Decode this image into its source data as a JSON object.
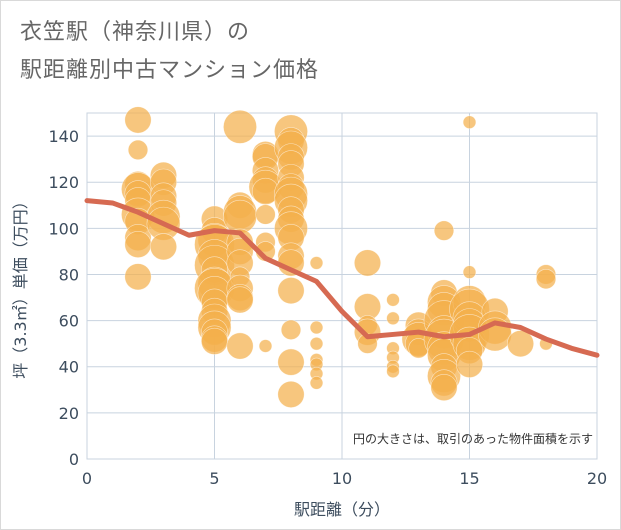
{
  "title_lines": [
    "衣笠駅（神奈川県）の",
    "駅距離別中古マンション価格"
  ],
  "chart_data": {
    "type": "scatter",
    "title": "衣笠駅（神奈川県）の駅距離別中古マンション価格",
    "xlabel": "駅距離（分）",
    "ylabel": "坪（3.3㎡）単価（万円）",
    "xlim": [
      0,
      20
    ],
    "ylim": [
      0,
      150
    ],
    "xticks": [
      0,
      5,
      10,
      15,
      20
    ],
    "yticks": [
      0,
      20,
      40,
      60,
      80,
      100,
      120,
      140
    ],
    "grid": true,
    "note": "円の大きさは、取引のあった物件面積を示す",
    "colors": {
      "bubble": "#f4b04c",
      "trend": "#d66a52",
      "grid": "#c8d3df",
      "text": "#3d4d5e"
    },
    "points": [
      {
        "x": 2,
        "y": 147,
        "s": 3
      },
      {
        "x": 2,
        "y": 134,
        "s": 2
      },
      {
        "x": 2,
        "y": 119,
        "s": 3
      },
      {
        "x": 2,
        "y": 117,
        "s": 4
      },
      {
        "x": 2,
        "y": 115,
        "s": 3
      },
      {
        "x": 2,
        "y": 112,
        "s": 3
      },
      {
        "x": 2,
        "y": 106,
        "s": 4
      },
      {
        "x": 2,
        "y": 103,
        "s": 3
      },
      {
        "x": 2,
        "y": 96,
        "s": 3
      },
      {
        "x": 2,
        "y": 93,
        "s": 3
      },
      {
        "x": 2,
        "y": 79,
        "s": 3
      },
      {
        "x": 3,
        "y": 123,
        "s": 3
      },
      {
        "x": 3,
        "y": 120,
        "s": 3
      },
      {
        "x": 3,
        "y": 114,
        "s": 3
      },
      {
        "x": 3,
        "y": 111,
        "s": 3
      },
      {
        "x": 3,
        "y": 105,
        "s": 4
      },
      {
        "x": 3,
        "y": 102,
        "s": 4
      },
      {
        "x": 3,
        "y": 92,
        "s": 3
      },
      {
        "x": 5,
        "y": 104,
        "s": 3
      },
      {
        "x": 5,
        "y": 99,
        "s": 3
      },
      {
        "x": 5,
        "y": 95,
        "s": 4
      },
      {
        "x": 5,
        "y": 93,
        "s": 5
      },
      {
        "x": 5,
        "y": 88,
        "s": 4
      },
      {
        "x": 5,
        "y": 84,
        "s": 5
      },
      {
        "x": 5,
        "y": 82,
        "s": 3
      },
      {
        "x": 5,
        "y": 76,
        "s": 4
      },
      {
        "x": 5,
        "y": 74,
        "s": 5
      },
      {
        "x": 5,
        "y": 72,
        "s": 4
      },
      {
        "x": 5,
        "y": 68,
        "s": 3
      },
      {
        "x": 5,
        "y": 64,
        "s": 3
      },
      {
        "x": 5,
        "y": 60,
        "s": 4
      },
      {
        "x": 5,
        "y": 57,
        "s": 4
      },
      {
        "x": 5,
        "y": 55,
        "s": 3
      },
      {
        "x": 5,
        "y": 52,
        "s": 3
      },
      {
        "x": 5,
        "y": 51,
        "s": 3
      },
      {
        "x": 6,
        "y": 144,
        "s": 4
      },
      {
        "x": 6,
        "y": 110,
        "s": 3
      },
      {
        "x": 6,
        "y": 107,
        "s": 4
      },
      {
        "x": 6,
        "y": 105,
        "s": 4
      },
      {
        "x": 6,
        "y": 94,
        "s": 3
      },
      {
        "x": 6,
        "y": 90,
        "s": 3
      },
      {
        "x": 6,
        "y": 85,
        "s": 3
      },
      {
        "x": 6,
        "y": 79,
        "s": 2
      },
      {
        "x": 6,
        "y": 74,
        "s": 3
      },
      {
        "x": 6,
        "y": 70,
        "s": 3
      },
      {
        "x": 6,
        "y": 69,
        "s": 3
      },
      {
        "x": 6,
        "y": 49,
        "s": 3
      },
      {
        "x": 7,
        "y": 132,
        "s": 3
      },
      {
        "x": 7,
        "y": 131,
        "s": 3
      },
      {
        "x": 7,
        "y": 125,
        "s": 3
      },
      {
        "x": 7,
        "y": 121,
        "s": 3
      },
      {
        "x": 7,
        "y": 118,
        "s": 4
      },
      {
        "x": 7,
        "y": 116,
        "s": 3
      },
      {
        "x": 7,
        "y": 106,
        "s": 2
      },
      {
        "x": 7,
        "y": 94,
        "s": 2
      },
      {
        "x": 7,
        "y": 90,
        "s": 2
      },
      {
        "x": 7,
        "y": 49,
        "s": 1
      },
      {
        "x": 8,
        "y": 142,
        "s": 4
      },
      {
        "x": 8,
        "y": 138,
        "s": 3
      },
      {
        "x": 8,
        "y": 135,
        "s": 4
      },
      {
        "x": 8,
        "y": 131,
        "s": 3
      },
      {
        "x": 8,
        "y": 128,
        "s": 3
      },
      {
        "x": 8,
        "y": 122,
        "s": 3
      },
      {
        "x": 8,
        "y": 118,
        "s": 3
      },
      {
        "x": 8,
        "y": 115,
        "s": 4
      },
      {
        "x": 8,
        "y": 112,
        "s": 4
      },
      {
        "x": 8,
        "y": 108,
        "s": 3
      },
      {
        "x": 8,
        "y": 104,
        "s": 3
      },
      {
        "x": 8,
        "y": 100,
        "s": 4
      },
      {
        "x": 8,
        "y": 96,
        "s": 3
      },
      {
        "x": 8,
        "y": 88,
        "s": 3
      },
      {
        "x": 8,
        "y": 85,
        "s": 3
      },
      {
        "x": 8,
        "y": 73,
        "s": 3
      },
      {
        "x": 8,
        "y": 56,
        "s": 2
      },
      {
        "x": 8,
        "y": 42,
        "s": 3
      },
      {
        "x": 8,
        "y": 28,
        "s": 3
      },
      {
        "x": 9,
        "y": 85,
        "s": 1
      },
      {
        "x": 9,
        "y": 57,
        "s": 1
      },
      {
        "x": 9,
        "y": 50,
        "s": 1
      },
      {
        "x": 9,
        "y": 43,
        "s": 1
      },
      {
        "x": 9,
        "y": 41,
        "s": 1
      },
      {
        "x": 9,
        "y": 37,
        "s": 1
      },
      {
        "x": 9,
        "y": 33,
        "s": 1
      },
      {
        "x": 11,
        "y": 85,
        "s": 3
      },
      {
        "x": 11,
        "y": 66,
        "s": 3
      },
      {
        "x": 11,
        "y": 58,
        "s": 2
      },
      {
        "x": 11,
        "y": 55,
        "s": 3
      },
      {
        "x": 11,
        "y": 50,
        "s": 2
      },
      {
        "x": 12,
        "y": 69,
        "s": 1
      },
      {
        "x": 12,
        "y": 61,
        "s": 1
      },
      {
        "x": 12,
        "y": 48,
        "s": 1
      },
      {
        "x": 12,
        "y": 44,
        "s": 1
      },
      {
        "x": 12,
        "y": 40,
        "s": 1
      },
      {
        "x": 12,
        "y": 38,
        "s": 1
      },
      {
        "x": 13,
        "y": 58,
        "s": 3
      },
      {
        "x": 13,
        "y": 55,
        "s": 3
      },
      {
        "x": 13,
        "y": 52,
        "s": 4
      },
      {
        "x": 13,
        "y": 50,
        "s": 3
      },
      {
        "x": 13,
        "y": 48,
        "s": 2
      },
      {
        "x": 14,
        "y": 99,
        "s": 2
      },
      {
        "x": 14,
        "y": 72,
        "s": 3
      },
      {
        "x": 14,
        "y": 68,
        "s": 4
      },
      {
        "x": 14,
        "y": 65,
        "s": 4
      },
      {
        "x": 14,
        "y": 60,
        "s": 5
      },
      {
        "x": 14,
        "y": 55,
        "s": 4
      },
      {
        "x": 14,
        "y": 52,
        "s": 5
      },
      {
        "x": 14,
        "y": 48,
        "s": 4
      },
      {
        "x": 14,
        "y": 45,
        "s": 4
      },
      {
        "x": 14,
        "y": 40,
        "s": 3
      },
      {
        "x": 14,
        "y": 36,
        "s": 4
      },
      {
        "x": 14,
        "y": 33,
        "s": 3
      },
      {
        "x": 14,
        "y": 31,
        "s": 3
      },
      {
        "x": 15,
        "y": 146,
        "s": 1
      },
      {
        "x": 15,
        "y": 81,
        "s": 1
      },
      {
        "x": 15,
        "y": 68,
        "s": 4
      },
      {
        "x": 15,
        "y": 65,
        "s": 5
      },
      {
        "x": 15,
        "y": 61,
        "s": 4
      },
      {
        "x": 15,
        "y": 58,
        "s": 4
      },
      {
        "x": 15,
        "y": 54,
        "s": 5
      },
      {
        "x": 15,
        "y": 50,
        "s": 4
      },
      {
        "x": 15,
        "y": 47,
        "s": 3
      },
      {
        "x": 15,
        "y": 41,
        "s": 3
      },
      {
        "x": 16,
        "y": 64,
        "s": 3
      },
      {
        "x": 16,
        "y": 57,
        "s": 4
      },
      {
        "x": 16,
        "y": 54,
        "s": 4
      },
      {
        "x": 17,
        "y": 50,
        "s": 3
      },
      {
        "x": 18,
        "y": 80,
        "s": 2
      },
      {
        "x": 18,
        "y": 78,
        "s": 2
      },
      {
        "x": 18,
        "y": 50,
        "s": 1
      }
    ],
    "trend": {
      "x": [
        0,
        1,
        2,
        3,
        4,
        5,
        6,
        7,
        8,
        9,
        10,
        11,
        12,
        13,
        14,
        15,
        16,
        17,
        18,
        19,
        20
      ],
      "y": [
        112,
        111,
        107,
        102,
        97,
        99,
        98,
        87,
        82,
        77,
        64,
        53,
        54,
        55,
        53,
        54,
        59,
        57,
        52,
        48,
        45
      ]
    }
  }
}
